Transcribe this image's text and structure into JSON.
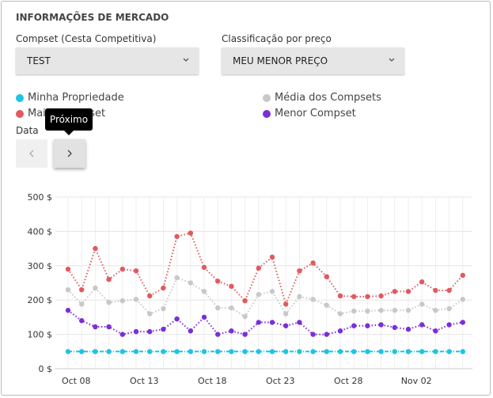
{
  "header": {
    "title": "INFORMAÇÕES DE MERCADO"
  },
  "filters": {
    "compset_label": "Compset (Cesta Competitiva)",
    "compset_value": "TEST",
    "sort_label": "Classificação por preço",
    "sort_value": "MEU MENOR PREÇO"
  },
  "date_label": "Data",
  "tooltip": "Próximo",
  "chart_data": {
    "type": "line",
    "categories": [
      null,
      "Oct 08",
      null,
      null,
      null,
      null,
      "Oct 13",
      null,
      null,
      null,
      null,
      "Oct 18",
      null,
      null,
      null,
      null,
      "Oct 23",
      null,
      null,
      null,
      null,
      "Oct 28",
      null,
      null,
      null,
      null,
      "Nov 02",
      null,
      null,
      null
    ],
    "ylim": [
      0,
      500
    ],
    "yticks": [
      {
        "value": 0,
        "label": "0 $"
      },
      {
        "value": 100,
        "label": "100 $"
      },
      {
        "value": 200,
        "label": "200 $"
      },
      {
        "value": 300,
        "label": "300 $"
      },
      {
        "value": 400,
        "label": "400 $"
      },
      {
        "value": 500,
        "label": "500 $"
      }
    ],
    "grid": true,
    "series": [
      {
        "name": "Minha Propriedade",
        "color": "#1ec3e8",
        "values": [
          50,
          50,
          50,
          50,
          50,
          50,
          50,
          50,
          50,
          50,
          50,
          50,
          50,
          50,
          50,
          50,
          50,
          50,
          50,
          50,
          50,
          50,
          50,
          50,
          50,
          50,
          50,
          50,
          50,
          50
        ]
      },
      {
        "name": "Maior Compset",
        "color": "#e05a5f",
        "values": [
          290,
          230,
          350,
          260,
          290,
          285,
          212,
          235,
          385,
          395,
          295,
          255,
          240,
          198,
          293,
          325,
          188,
          285,
          308,
          268,
          212,
          210,
          210,
          212,
          225,
          225,
          253,
          228,
          228,
          272
        ]
      },
      {
        "name": "Média dos Compsets",
        "color": "#c8c8c8",
        "values": [
          230,
          188,
          235,
          193,
          198,
          202,
          160,
          175,
          265,
          250,
          225,
          177,
          177,
          152,
          216,
          225,
          160,
          210,
          202,
          185,
          160,
          168,
          168,
          170,
          170,
          170,
          188,
          170,
          175,
          202
        ]
      },
      {
        "name": "Menor Compset",
        "color": "#7b2fd6",
        "values": [
          170,
          140,
          122,
          122,
          100,
          108,
          108,
          115,
          145,
          110,
          150,
          100,
          110,
          100,
          135,
          135,
          125,
          135,
          100,
          100,
          110,
          125,
          125,
          128,
          120,
          115,
          128,
          110,
          128,
          135
        ]
      }
    ]
  }
}
